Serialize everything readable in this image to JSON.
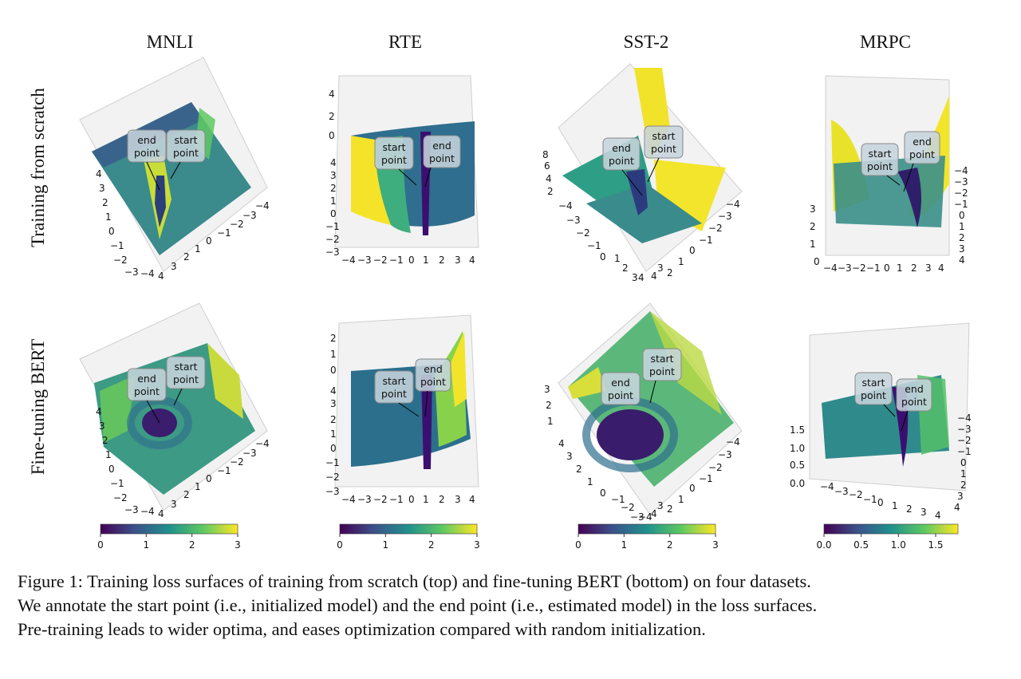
{
  "column_titles": [
    "MNLI",
    "RTE",
    "SST-2",
    "MRPC"
  ],
  "row_titles": [
    "Training from scratch",
    "Fine-tuning BERT"
  ],
  "annotations": {
    "start": "start point",
    "end": "end point"
  },
  "caption": {
    "lines": [
      "Figure 1: Training loss surfaces of training from scratch (top) and fine-tuning BERT (bottom) on four datasets.",
      "We annotate the start point (i.e., initialized model) and the end point (i.e., estimated model) in the loss surfaces.",
      "Pre-training leads to wider optima, and eases optimization compared with random initialization."
    ]
  },
  "colormap": {
    "name": "viridis",
    "stops": [
      "#440154",
      "#3b528b",
      "#21918c",
      "#5ec962",
      "#fde725"
    ]
  },
  "chart_data": [
    {
      "type": "surface3d",
      "dataset": "MNLI",
      "setting": "Training from scratch",
      "x_ticks": [
        "−4",
        "−3",
        "−2",
        "−1",
        "0",
        "1",
        "2",
        "3",
        "4"
      ],
      "y_ticks": [
        "4",
        "3",
        "2",
        "1",
        "0",
        "−1",
        "−2",
        "−3",
        "−4"
      ],
      "z_ticks": [],
      "colorbar": {
        "ticks": [
          "0",
          "1",
          "2",
          "3"
        ],
        "range": [
          0,
          3
        ]
      }
    },
    {
      "type": "surface3d",
      "dataset": "RTE",
      "setting": "Training from scratch",
      "x_ticks": [
        "−4",
        "−3",
        "−2",
        "−1",
        "0",
        "1",
        "2",
        "3",
        "4"
      ],
      "y_ticks": [
        "4",
        "3",
        "2",
        "1",
        "0",
        "−1",
        "−2",
        "−3",
        "−4"
      ],
      "z_ticks": [
        "4",
        "2",
        "0"
      ],
      "colorbar": {
        "ticks": [
          "0",
          "1",
          "2",
          "3"
        ],
        "range": [
          0,
          3
        ]
      }
    },
    {
      "type": "surface3d",
      "dataset": "SST-2",
      "setting": "Training from scratch",
      "x_ticks": [
        "−4",
        "−3",
        "−2",
        "−1",
        "0",
        "1",
        "2",
        "3",
        "4"
      ],
      "y_ticks": [
        "4",
        "3",
        "2",
        "1",
        "0",
        "−1",
        "−2",
        "−3",
        "−4"
      ],
      "z_ticks": [
        "8",
        "6",
        "4",
        "2"
      ],
      "colorbar": {
        "ticks": [
          "0",
          "1",
          "2",
          "3"
        ],
        "range": [
          0,
          3
        ]
      }
    },
    {
      "type": "surface3d",
      "dataset": "MRPC",
      "setting": "Training from scratch",
      "x_ticks": [
        "−4",
        "−3",
        "−2",
        "−1",
        "0",
        "1",
        "2",
        "3",
        "4"
      ],
      "y_ticks": [
        "−4",
        "−3",
        "−2",
        "−1",
        "0",
        "1",
        "2",
        "3",
        "4"
      ],
      "z_ticks": [
        "3",
        "2",
        "1",
        "0"
      ],
      "colorbar": {
        "ticks": [
          "0.0",
          "0.5",
          "1.0",
          "1.5"
        ],
        "range": [
          0,
          1.8
        ]
      }
    },
    {
      "type": "surface3d",
      "dataset": "MNLI",
      "setting": "Fine-tuning BERT",
      "x_ticks": [
        "−4",
        "−3",
        "−2",
        "−1",
        "0",
        "1",
        "2",
        "3",
        "4"
      ],
      "y_ticks": [
        "4",
        "3",
        "2",
        "1",
        "0",
        "−1",
        "−2",
        "−3",
        "−4"
      ],
      "z_ticks": []
    },
    {
      "type": "surface3d",
      "dataset": "RTE",
      "setting": "Fine-tuning BERT",
      "x_ticks": [
        "−4",
        "−3",
        "−2",
        "−1",
        "0",
        "1",
        "2",
        "3",
        "4"
      ],
      "y_ticks": [
        "4",
        "3",
        "2",
        "1",
        "0",
        "−1",
        "−2",
        "−3",
        "−4"
      ],
      "z_ticks": [
        "2",
        "1",
        "0"
      ]
    },
    {
      "type": "surface3d",
      "dataset": "SST-2",
      "setting": "Fine-tuning BERT",
      "x_ticks": [
        "−4",
        "−3",
        "−2",
        "−1",
        "0",
        "1",
        "2",
        "3",
        "4"
      ],
      "y_ticks": [
        "4",
        "3",
        "2",
        "1",
        "0",
        "−1",
        "−2",
        "−3",
        "−4"
      ],
      "z_ticks": [
        "3",
        "2",
        "1"
      ]
    },
    {
      "type": "surface3d",
      "dataset": "MRPC",
      "setting": "Fine-tuning BERT",
      "x_ticks": [
        "−4",
        "−3",
        "−2",
        "−1",
        "0",
        "1",
        "2",
        "3",
        "4"
      ],
      "y_ticks": [
        "−4",
        "−3",
        "−2",
        "−1",
        "0",
        "1",
        "2",
        "3",
        "4"
      ],
      "z_ticks": [
        "1.5",
        "1.0",
        "0.5",
        "0.0"
      ]
    }
  ]
}
